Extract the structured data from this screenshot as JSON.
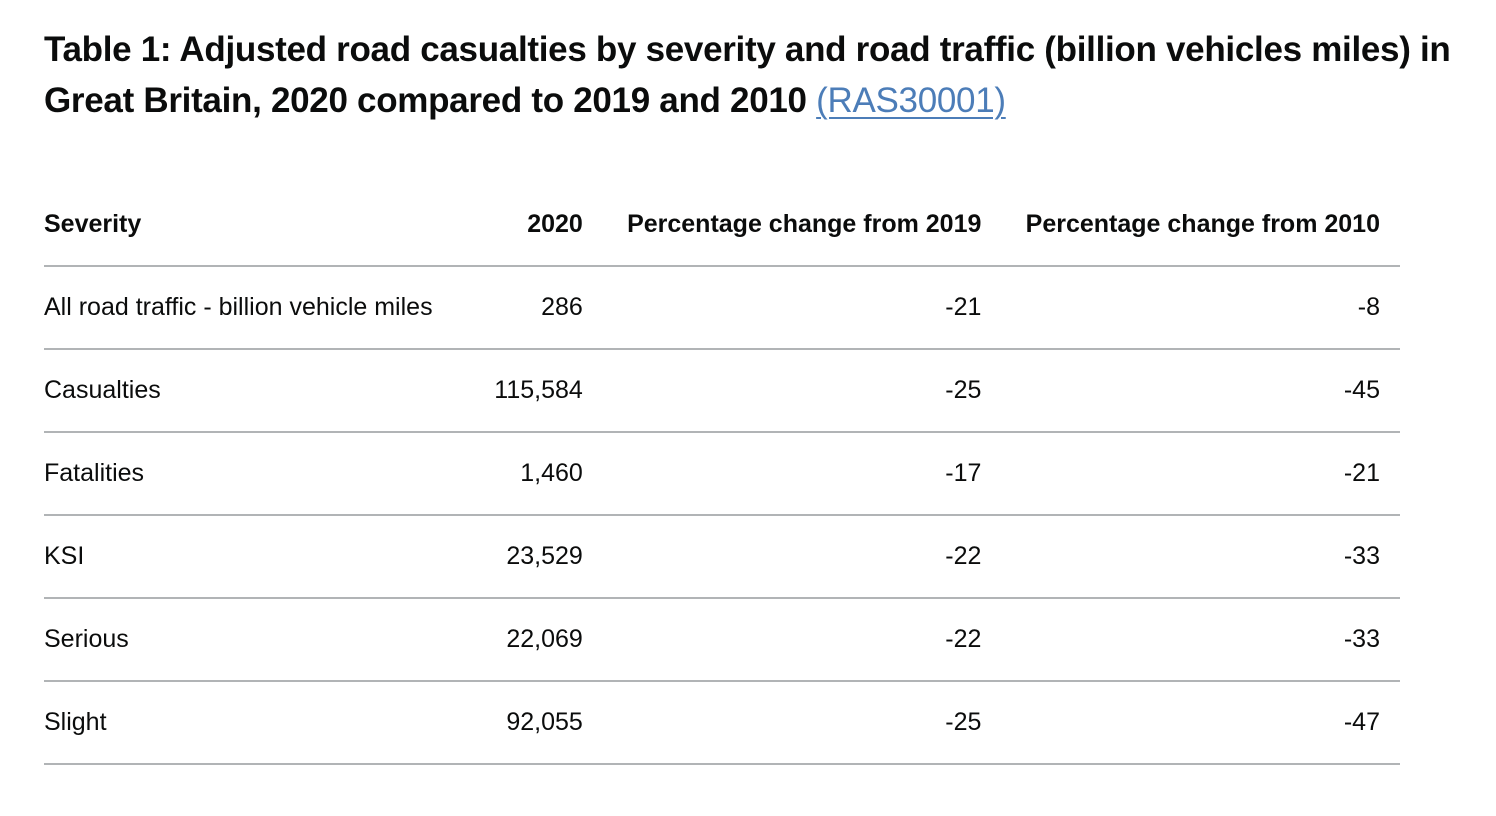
{
  "title": {
    "text": "Table 1: Adjusted road casualties by severity and road traffic (billion vehicles miles) in Great Britain, 2020 compared to 2019 and 2010",
    "link_text": "(RAS30001)"
  },
  "table": {
    "headers": [
      "Severity",
      "2020",
      "Percentage change from 2019",
      "Percentage change from 2010"
    ],
    "rows": [
      [
        "All road traffic - billion vehicle miles",
        "286",
        "-21",
        "-8"
      ],
      [
        "Casualties",
        "115,584",
        "-25",
        "-45"
      ],
      [
        "Fatalities",
        "1,460",
        "-17",
        "-21"
      ],
      [
        "KSI",
        "23,529",
        "-22",
        "-33"
      ],
      [
        "Serious",
        "22,069",
        "-22",
        "-33"
      ],
      [
        "Slight",
        "92,055",
        "-25",
        "-47"
      ]
    ]
  },
  "colors": {
    "text": "#0b0c0c",
    "link": "#4c7db8",
    "rule": "#b1b4b6"
  }
}
